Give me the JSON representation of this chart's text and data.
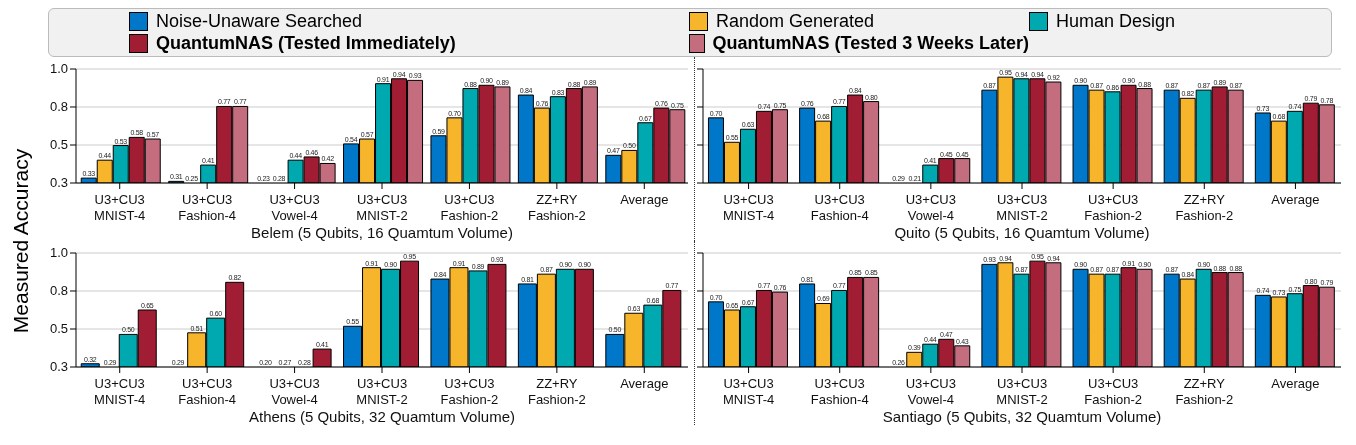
{
  "chart_data": [
    {
      "type": "bar",
      "ylabel": "Measured Accuracy",
      "xlabel": "Belem (5 Qubits, 16 Quamtum Volume)",
      "categories": [
        "U3+CU3 MNIST-4",
        "U3+CU3 Fashion-4",
        "U3+CU3 Vowel-4",
        "U3+CU3 MNIST-2",
        "U3+CU3 Fashion-2",
        "ZZ+RY Fashion-2",
        "Average"
      ],
      "ylim": [
        0.3,
        1.0
      ],
      "yticks": [
        0.3,
        {
          "value": 0.5333,
          "label": "0.5"
        },
        {
          "value": 0.7667,
          "label": "0.8"
        },
        {
          "value": 1.0,
          "label": "1.0"
        }
      ],
      "grid": "y",
      "legend": "top",
      "tick_labels": "xy",
      "series": [
        {
          "name": "Noise-Unaware Searched",
          "color": "#0077c8",
          "values": [
            0.33,
            0.31,
            null,
            0.54,
            0.59,
            0.84,
            0.47
          ],
          "value_labels": [
            "0.33",
            "0.31",
            "0.23",
            "0.54",
            "0.59",
            "0.84",
            "0.47"
          ]
        },
        {
          "name": "Random Generated",
          "color": "#f7b52c",
          "values": [
            0.44,
            null,
            null,
            0.57,
            0.7,
            0.76,
            0.5
          ],
          "value_labels": [
            "0.44",
            "0.25",
            "0.28",
            "0.57",
            "0.70",
            "0.76",
            "0.50"
          ]
        },
        {
          "name": "Human Design",
          "color": "#00a8b0",
          "values": [
            0.53,
            0.41,
            0.44,
            0.91,
            0.88,
            0.83,
            0.67
          ],
          "value_labels": [
            "0.53",
            "0.41",
            "0.44",
            "0.91",
            "0.88",
            "0.83",
            "0.67"
          ]
        },
        {
          "name": "QuantumNAS (Tested Immediately)",
          "color": "#a11d33",
          "values": [
            0.58,
            0.77,
            0.46,
            0.94,
            0.9,
            0.88,
            0.76
          ],
          "value_labels": [
            "0.58",
            "0.77",
            "0.46",
            "0.94",
            "0.90",
            "0.88",
            "0.76"
          ]
        },
        {
          "name": "QuantumNAS (Tested 3 Weeks Later)",
          "color": "#c46d7e",
          "values": [
            0.57,
            0.77,
            0.42,
            0.93,
            0.89,
            0.89,
            0.75
          ],
          "value_labels": [
            "0.57",
            "0.77",
            "0.42",
            "0.93",
            "0.89",
            "0.89",
            "0.75"
          ]
        }
      ]
    },
    {
      "type": "bar",
      "xlabel": "Quito (5 Qubits, 16 Quamtum Volume)",
      "categories": [
        "U3+CU3 MNIST-4",
        "U3+CU3 Fashion-4",
        "U3+CU3 Vowel-4",
        "U3+CU3 MNIST-2",
        "U3+CU3 Fashion-2",
        "ZZ+RY Fashion-2",
        "Average"
      ],
      "ylim": [
        0.3,
        1.0
      ],
      "yticks": [
        {
          "value": 0.3,
          "label": null
        },
        {
          "value": 0.5333,
          "label": null
        },
        {
          "value": 0.7667,
          "label": null
        },
        {
          "value": 1.0,
          "label": null
        }
      ],
      "grid": "y",
      "tick_labels": "x",
      "series": [
        {
          "color": "#0077c8",
          "values": [
            0.7,
            0.76,
            null,
            0.87,
            0.9,
            0.87,
            0.73
          ],
          "value_labels": [
            "0.70",
            "0.76",
            "0.29",
            "0.87",
            "0.90",
            "0.87",
            "0.73"
          ]
        },
        {
          "color": "#f7b52c",
          "values": [
            0.55,
            0.68,
            null,
            0.95,
            0.87,
            0.82,
            0.68
          ],
          "value_labels": [
            "0.55",
            "0.68",
            "0.21",
            "0.95",
            "0.87",
            "0.82",
            "0.68"
          ]
        },
        {
          "color": "#00a8b0",
          "values": [
            0.63,
            0.77,
            0.41,
            0.94,
            0.86,
            0.87,
            0.74
          ],
          "value_labels": [
            "0.63",
            "0.77",
            "0.41",
            "0.94",
            "0.86",
            "0.87",
            "0.74"
          ]
        },
        {
          "color": "#a11d33",
          "values": [
            0.74,
            0.84,
            0.45,
            0.94,
            0.9,
            0.89,
            0.79
          ],
          "value_labels": [
            "0.74",
            "0.84",
            "0.45",
            "0.94",
            "0.90",
            "0.89",
            "0.79"
          ]
        },
        {
          "color": "#c46d7e",
          "values": [
            0.75,
            0.8,
            0.45,
            0.92,
            0.88,
            0.87,
            0.78
          ],
          "value_labels": [
            "0.75",
            "0.80",
            "0.45",
            "0.92",
            "0.88",
            "0.87",
            "0.78"
          ]
        }
      ]
    },
    {
      "type": "bar",
      "xlabel": "Athens (5 Qubits, 32 Quamtum Volume)",
      "categories": [
        "U3+CU3 MNIST-4",
        "U3+CU3 Fashion-4",
        "U3+CU3 Vowel-4",
        "U3+CU3 MNIST-2",
        "U3+CU3 Fashion-2",
        "ZZ+RY Fashion-2",
        "Average"
      ],
      "ylim": [
        0.3,
        1.0
      ],
      "yticks": [
        0.3,
        {
          "value": 0.5333,
          "label": "0.5"
        },
        {
          "value": 0.7667,
          "label": "0.8"
        },
        {
          "value": 1.0,
          "label": "1.0"
        }
      ],
      "grid": "y",
      "tick_labels": "xy",
      "series": [
        {
          "color": "#0077c8",
          "values": [
            0.32,
            null,
            null,
            0.55,
            0.84,
            0.81,
            0.5
          ],
          "value_labels": [
            "0.32",
            "0.29",
            "0.20",
            "0.55",
            "0.84",
            "0.81",
            "0.50"
          ]
        },
        {
          "color": "#f7b52c",
          "values": [
            null,
            0.51,
            null,
            0.91,
            0.91,
            0.87,
            0.63
          ],
          "value_labels": [
            "0.29",
            "0.51",
            "0.27",
            "0.91",
            "0.91",
            "0.87",
            "0.63"
          ]
        },
        {
          "color": "#00a8b0",
          "values": [
            0.5,
            0.6,
            null,
            0.9,
            0.89,
            0.9,
            0.68
          ],
          "value_labels": [
            "0.50",
            "0.60",
            "0.28",
            "0.90",
            "0.89",
            "0.90",
            "0.68"
          ]
        },
        {
          "color": "#a11d33",
          "values": [
            0.65,
            0.82,
            0.41,
            0.95,
            0.93,
            0.9,
            0.77
          ],
          "value_labels": [
            "0.65",
            "0.82",
            "0.41",
            "0.95",
            "0.93",
            "0.90",
            "0.77"
          ]
        }
      ]
    },
    {
      "type": "bar",
      "xlabel": "Santiago (5 Qubits, 32 Quamtum Volume)",
      "categories": [
        "U3+CU3 MNIST-4",
        "U3+CU3 Fashion-4",
        "U3+CU3 Vowel-4",
        "U3+CU3 MNIST-2",
        "U3+CU3 Fashion-2",
        "ZZ+RY Fashion-2",
        "Average"
      ],
      "ylim": [
        0.3,
        1.0
      ],
      "yticks": [
        {
          "value": 0.3,
          "label": null
        },
        {
          "value": 0.5333,
          "label": null
        },
        {
          "value": 0.7667,
          "label": null
        },
        {
          "value": 1.0,
          "label": null
        }
      ],
      "grid": "y",
      "tick_labels": "x",
      "series": [
        {
          "color": "#0077c8",
          "values": [
            0.7,
            0.81,
            null,
            0.93,
            0.9,
            0.87,
            0.74
          ],
          "value_labels": [
            "0.70",
            "0.81",
            "0.26",
            "0.93",
            "0.90",
            "0.87",
            "0.74"
          ]
        },
        {
          "color": "#f7b52c",
          "values": [
            0.65,
            0.69,
            0.39,
            0.94,
            0.87,
            0.84,
            0.73
          ],
          "value_labels": [
            "0.65",
            "0.69",
            "0.39",
            "0.94",
            "0.87",
            "0.84",
            "0.73"
          ]
        },
        {
          "color": "#00a8b0",
          "values": [
            0.67,
            0.77,
            0.44,
            0.87,
            0.87,
            0.9,
            0.75
          ],
          "value_labels": [
            "0.67",
            "0.77",
            "0.44",
            "0.87",
            "0.87",
            "0.90",
            "0.75"
          ]
        },
        {
          "color": "#a11d33",
          "values": [
            0.77,
            0.85,
            0.47,
            0.95,
            0.91,
            0.88,
            0.8
          ],
          "value_labels": [
            "0.77",
            "0.85",
            "0.47",
            "0.95",
            "0.91",
            "0.88",
            "0.80"
          ]
        },
        {
          "color": "#c46d7e",
          "values": [
            0.76,
            0.85,
            0.43,
            0.94,
            0.9,
            0.88,
            0.79
          ],
          "value_labels": [
            "0.76",
            "0.85",
            "0.43",
            "0.94",
            "0.90",
            "0.88",
            "0.79"
          ]
        }
      ]
    }
  ]
}
